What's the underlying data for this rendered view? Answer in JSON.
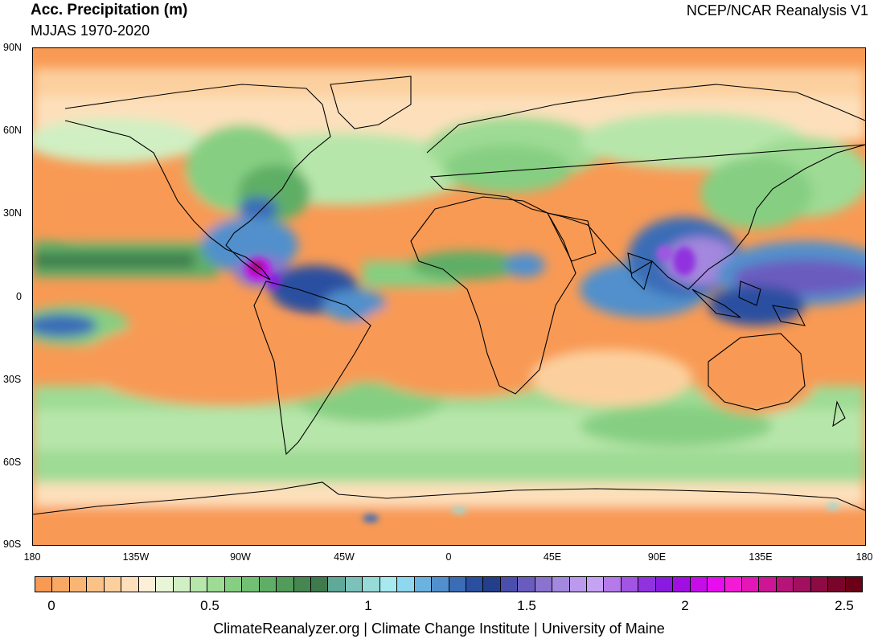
{
  "header": {
    "title": "Acc. Precipitation (m)",
    "subtitle": "MJJAS 1970-2020",
    "source": "NCEP/NCAR Reanalysis V1"
  },
  "axes": {
    "lat_labels": [
      "90N",
      "60N",
      "30N",
      "0",
      "30S",
      "60S",
      "90S"
    ],
    "lon_labels": [
      "180",
      "135W",
      "90W",
      "45W",
      "0",
      "45E",
      "90E",
      "135E",
      "180"
    ]
  },
  "colorbar": {
    "labels": [
      "0",
      "0.5",
      "1",
      "1.5",
      "2",
      "2.5"
    ],
    "colors": [
      "#f89a54",
      "#f9a863",
      "#fab574",
      "#fbc287",
      "#fcd09e",
      "#fde0bb",
      "#fcefd8",
      "#e8f5d6",
      "#d0efc2",
      "#b7e6aa",
      "#9edb94",
      "#86cf82",
      "#71c074",
      "#5fae66",
      "#529b5a",
      "#478650",
      "#3e7a4c",
      "#5fa89a",
      "#7cc2bb",
      "#96dbd7",
      "#a6eaf0",
      "#8fd6ef",
      "#6bb3df",
      "#5190cc",
      "#3b6db7",
      "#2a4fa0",
      "#233e8b",
      "#4a4fae",
      "#6a5cbf",
      "#8a73cf",
      "#a487de",
      "#bb9aed",
      "#c6a2f4",
      "#b47ae9",
      "#a255e2",
      "#9033de",
      "#8a1ae0",
      "#a10ee3",
      "#c40de8",
      "#e80cf0",
      "#f31bd5",
      "#e416b5",
      "#cd1596",
      "#b71479",
      "#a20f5e",
      "#8d0a43",
      "#7a052a",
      "#6b0016"
    ]
  },
  "footer": {
    "credit": "ClimateReanalyzer.org | Climate Change Institute | University of Maine"
  }
}
